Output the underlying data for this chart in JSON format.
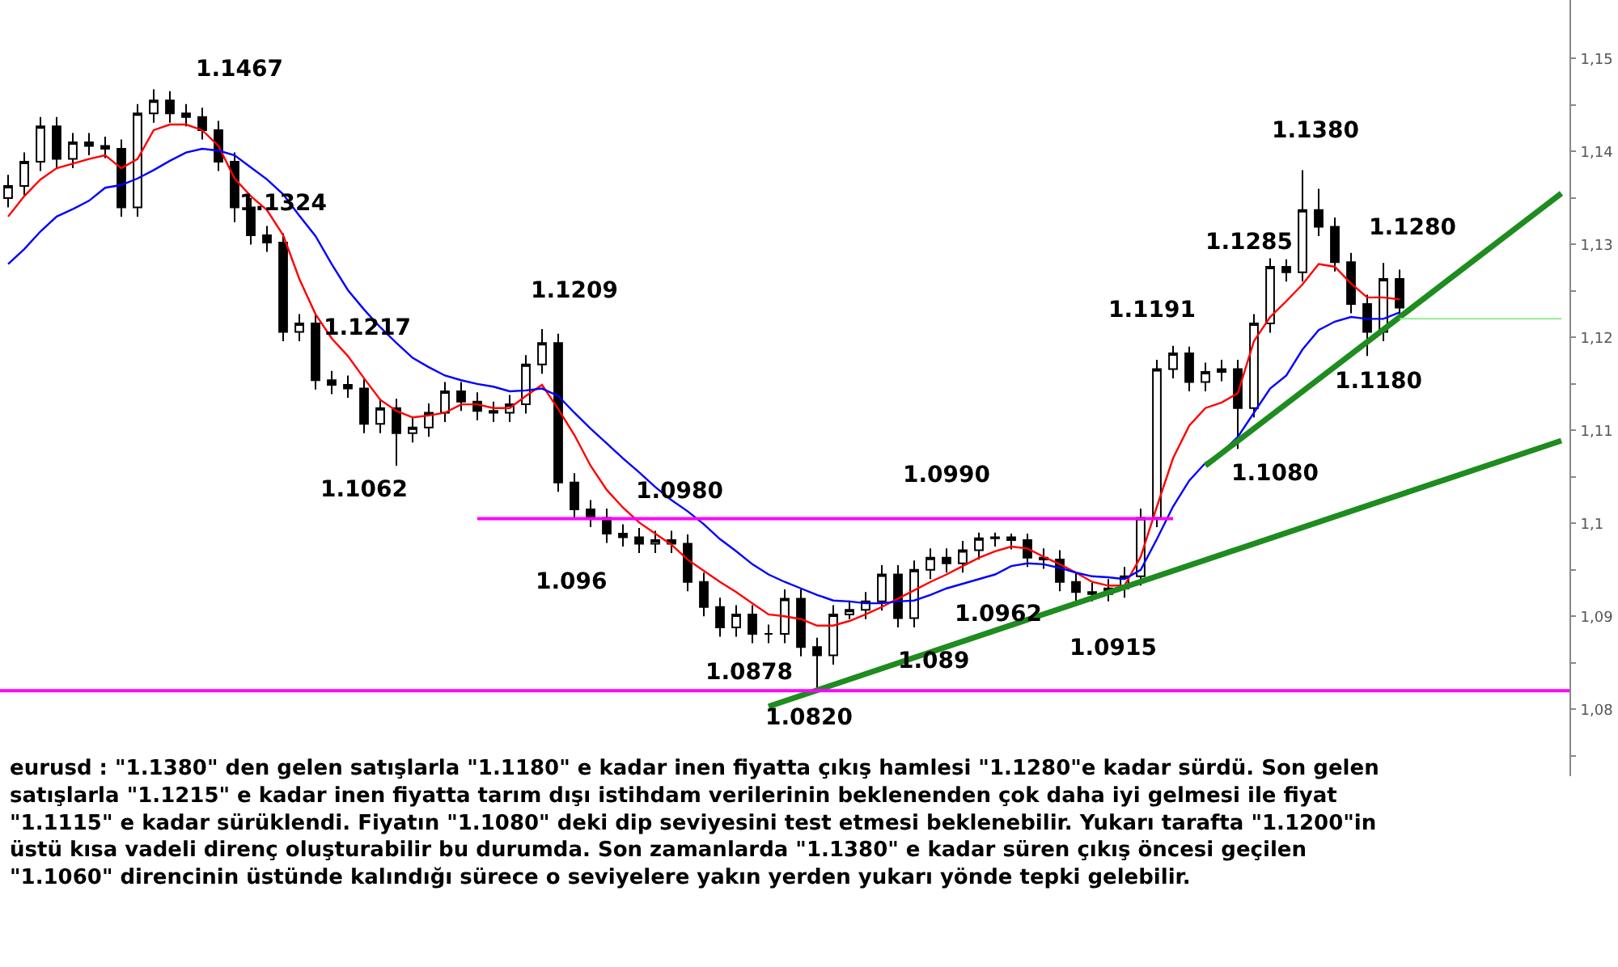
{
  "chart_data": {
    "type": "candlestick",
    "color": "#000000",
    "tick_labels": "y",
    "categories": [
      null,
      null,
      null,
      null,
      null,
      null,
      null,
      null,
      null,
      null,
      null,
      null,
      null,
      null,
      null,
      null,
      null,
      null,
      null,
      null,
      null,
      null,
      null,
      null,
      null,
      null,
      null,
      null,
      null,
      null,
      null,
      null,
      null,
      null,
      null,
      null,
      null,
      null,
      null,
      null,
      null,
      null,
      null,
      null,
      null,
      null,
      null,
      null,
      null,
      null,
      null,
      null,
      null,
      null,
      null,
      null,
      null,
      null,
      null,
      null,
      null,
      null,
      null,
      null,
      null,
      null,
      null,
      null,
      null,
      null,
      null,
      null,
      null,
      null,
      null,
      null,
      null,
      null,
      null,
      null,
      null,
      null,
      null,
      null,
      null,
      null,
      null,
      null,
      null,
      null,
      null,
      null,
      null,
      null,
      null,
      null,
      null
    ],
    "ohlc": [
      [
        1.135,
        1.1375,
        1.134,
        1.1363
      ],
      [
        1.1363,
        1.1399,
        1.1353,
        1.1389
      ],
      [
        1.1389,
        1.1437,
        1.1379,
        1.1427
      ],
      [
        1.1427,
        1.1437,
        1.1382,
        1.1392
      ],
      [
        1.1392,
        1.142,
        1.1382,
        1.141
      ],
      [
        1.141,
        1.142,
        1.1396,
        1.1406
      ],
      [
        1.1406,
        1.1416,
        1.1393,
        1.1403
      ],
      [
        1.1403,
        1.1413,
        1.133,
        1.134
      ],
      [
        1.134,
        1.1451,
        1.133,
        1.1441
      ],
      [
        1.1441,
        1.1467,
        1.1431,
        1.1455
      ],
      [
        1.1455,
        1.1465,
        1.1431,
        1.1441
      ],
      [
        1.1441,
        1.1451,
        1.1427,
        1.1437
      ],
      [
        1.1437,
        1.1447,
        1.1413,
        1.1423
      ],
      [
        1.1423,
        1.1433,
        1.1379,
        1.1389
      ],
      [
        1.1389,
        1.1399,
        1.1324,
        1.134
      ],
      [
        1.134,
        1.135,
        1.13,
        1.131
      ],
      [
        1.131,
        1.132,
        1.1292,
        1.1302
      ],
      [
        1.1302,
        1.1312,
        1.1196,
        1.1206
      ],
      [
        1.1206,
        1.1225,
        1.1196,
        1.1215
      ],
      [
        1.1215,
        1.1225,
        1.1144,
        1.1154
      ],
      [
        1.1154,
        1.1164,
        1.1139,
        1.1149
      ],
      [
        1.1149,
        1.1159,
        1.1135,
        1.1145
      ],
      [
        1.1145,
        1.1155,
        1.1097,
        1.1107
      ],
      [
        1.1107,
        1.1134,
        1.1097,
        1.1124
      ],
      [
        1.1124,
        1.1134,
        1.1062,
        1.1097
      ],
      [
        1.1097,
        1.1113,
        1.1087,
        1.1103
      ],
      [
        1.1103,
        1.1129,
        1.1093,
        1.1119
      ],
      [
        1.1119,
        1.1152,
        1.1109,
        1.1142
      ],
      [
        1.1142,
        1.1152,
        1.1121,
        1.1131
      ],
      [
        1.1131,
        1.1141,
        1.1111,
        1.1121
      ],
      [
        1.1121,
        1.1131,
        1.1109,
        1.1119
      ],
      [
        1.1119,
        1.1138,
        1.1109,
        1.1128
      ],
      [
        1.1128,
        1.1181,
        1.1118,
        1.1171
      ],
      [
        1.1171,
        1.1209,
        1.1161,
        1.1194
      ],
      [
        1.1194,
        1.1204,
        1.1034,
        1.1044
      ],
      [
        1.1044,
        1.1054,
        1.1005,
        1.1015
      ],
      [
        1.1015,
        1.1025,
        1.0996,
        1.1006
      ],
      [
        1.1006,
        1.1016,
        1.0979,
        1.0989
      ],
      [
        1.0989,
        1.0999,
        1.0975,
        1.0985
      ],
      [
        1.0985,
        1.0995,
        1.0968,
        1.0978
      ],
      [
        1.0978,
        1.0992,
        1.0968,
        1.0982
      ],
      [
        1.0982,
        1.0992,
        1.0968,
        1.0978
      ],
      [
        1.0978,
        1.0988,
        1.0927,
        1.0937
      ],
      [
        1.0937,
        1.0947,
        1.09,
        1.091
      ],
      [
        1.091,
        1.092,
        1.0878,
        1.0888
      ],
      [
        1.0888,
        1.0912,
        1.0878,
        1.0902
      ],
      [
        1.0902,
        1.0912,
        1.0871,
        1.0881
      ],
      [
        1.0881,
        1.0891,
        1.0871,
        1.0881
      ],
      [
        1.0881,
        1.0929,
        1.0871,
        1.0919
      ],
      [
        1.0919,
        1.0929,
        1.0857,
        1.0867
      ],
      [
        1.0867,
        1.0877,
        1.082,
        1.0858
      ],
      [
        1.0858,
        1.0912,
        1.0848,
        1.0902
      ],
      [
        1.0902,
        1.0917,
        1.0897,
        1.0907
      ],
      [
        1.0907,
        1.0926,
        1.0897,
        1.0916
      ],
      [
        1.0916,
        1.0955,
        1.0906,
        1.0945
      ],
      [
        1.0945,
        1.0955,
        1.0888,
        1.0898
      ],
      [
        1.0898,
        1.096,
        1.0888,
        1.095
      ],
      [
        1.095,
        1.0973,
        1.094,
        1.0963
      ],
      [
        1.0963,
        1.0973,
        1.0947,
        1.0957
      ],
      [
        1.0957,
        1.0981,
        1.0947,
        1.0971
      ],
      [
        1.0971,
        1.099,
        1.0961,
        1.0984
      ],
      [
        1.0984,
        1.099,
        1.0975,
        1.0985
      ],
      [
        1.0985,
        1.0989,
        1.0972,
        1.0982
      ],
      [
        1.0982,
        1.0989,
        1.0953,
        1.0963
      ],
      [
        1.0963,
        1.0973,
        1.0951,
        1.0961
      ],
      [
        1.0961,
        1.0971,
        1.0927,
        1.0937
      ],
      [
        1.0937,
        1.0947,
        1.0915,
        1.0926
      ],
      [
        1.0926,
        1.0936,
        1.0916,
        1.0924
      ],
      [
        1.0924,
        1.094,
        1.0916,
        1.093
      ],
      [
        1.093,
        1.0953,
        1.092,
        1.0943
      ],
      [
        1.0943,
        1.1016,
        1.0933,
        1.1006
      ],
      [
        1.1006,
        1.1176,
        1.0996,
        1.1166
      ],
      [
        1.1166,
        1.1191,
        1.1156,
        1.1183
      ],
      [
        1.1183,
        1.119,
        1.1142,
        1.1152
      ],
      [
        1.1152,
        1.1173,
        1.1142,
        1.1163
      ],
      [
        1.1163,
        1.1176,
        1.1153,
        1.1166
      ],
      [
        1.1166,
        1.1176,
        1.108,
        1.1124
      ],
      [
        1.1124,
        1.1225,
        1.1114,
        1.1215
      ],
      [
        1.1215,
        1.1285,
        1.1205,
        1.1276
      ],
      [
        1.1276,
        1.1284,
        1.126,
        1.127
      ],
      [
        1.127,
        1.138,
        1.126,
        1.1337
      ],
      [
        1.1337,
        1.136,
        1.1309,
        1.1319
      ],
      [
        1.1319,
        1.1329,
        1.1271,
        1.1281
      ],
      [
        1.1281,
        1.1291,
        1.1226,
        1.1236
      ],
      [
        1.1236,
        1.1246,
        1.118,
        1.1206
      ],
      [
        1.1206,
        1.128,
        1.1196,
        1.1263
      ],
      [
        1.1263,
        1.1273,
        1.1222,
        1.1232
      ],
      null,
      null,
      null,
      null,
      null,
      null,
      null,
      null,
      null,
      null
    ],
    "series": [
      {
        "type": "line",
        "color": "#ff0000",
        "values": [
          1.133,
          1.1352,
          1.137,
          1.1382,
          1.1387,
          1.1392,
          1.1396,
          1.1382,
          1.1392,
          1.1423,
          1.1429,
          1.1429,
          1.1423,
          1.1406,
          1.1371,
          1.1352,
          1.1337,
          1.131,
          1.1263,
          1.1225,
          1.1199,
          1.118,
          1.1156,
          1.1133,
          1.1121,
          1.1114,
          1.1116,
          1.1119,
          1.1128,
          1.1128,
          1.1124,
          1.1124,
          1.1137,
          1.1149,
          1.1123,
          1.1095,
          1.1062,
          1.1036,
          1.1017,
          1.1001,
          1.0989,
          1.0977,
          1.0961,
          1.0949,
          1.0937,
          1.0926,
          1.0914,
          1.0902,
          1.09,
          1.0897,
          1.089,
          1.089,
          1.0895,
          1.0902,
          1.091,
          1.0919,
          1.0928,
          1.0937,
          1.0945,
          1.0954,
          1.0963,
          1.097,
          1.0975,
          1.0973,
          1.0964,
          1.0956,
          1.0947,
          1.0937,
          1.0933,
          1.0933,
          1.0964,
          1.1018,
          1.107,
          1.1105,
          1.1124,
          1.113,
          1.114,
          1.1196,
          1.1222,
          1.1239,
          1.1257,
          1.1279,
          1.1276,
          1.1258,
          1.1243,
          1.1243,
          1.1241,
          null,
          null,
          null,
          null,
          null,
          null,
          null,
          null,
          null,
          null
        ]
      },
      {
        "type": "line",
        "color": "#0000ff",
        "values": [
          1.1279,
          1.1295,
          1.1314,
          1.133,
          1.1338,
          1.1347,
          1.1361,
          1.1364,
          1.1371,
          1.138,
          1.139,
          1.1399,
          1.1403,
          1.1401,
          1.1396,
          1.1383,
          1.137,
          1.1354,
          1.1331,
          1.1309,
          1.1279,
          1.1251,
          1.123,
          1.1211,
          1.1194,
          1.1178,
          1.1168,
          1.1159,
          1.1154,
          1.115,
          1.1147,
          1.1142,
          1.1143,
          1.1145,
          1.1137,
          1.1119,
          1.1102,
          1.1086,
          1.107,
          1.1055,
          1.1039,
          1.1025,
          1.1013,
          1.0999,
          1.0983,
          1.097,
          1.0956,
          1.0945,
          1.0937,
          1.093,
          1.0923,
          1.0917,
          1.0916,
          1.0914,
          1.0914,
          1.0916,
          1.0917,
          1.0923,
          1.093,
          1.0935,
          1.094,
          1.0945,
          1.0954,
          1.0957,
          1.0956,
          1.0952,
          1.0947,
          1.0943,
          1.0942,
          1.094,
          1.095,
          1.0983,
          1.1018,
          1.1046,
          1.1065,
          1.1076,
          1.1093,
          1.1119,
          1.1145,
          1.1159,
          1.1187,
          1.1208,
          1.1217,
          1.1222,
          1.122,
          1.122,
          1.1227,
          null,
          null,
          null,
          null,
          null,
          null,
          null,
          null,
          null,
          null
        ]
      },
      {
        "type": "line",
        "color": "#1e8c1e",
        "values": [
          null,
          null,
          null,
          null,
          null,
          null,
          null,
          null,
          null,
          null,
          null,
          null,
          null,
          null,
          null,
          null,
          null,
          null,
          null,
          null,
          null,
          null,
          null,
          null,
          null,
          null,
          null,
          null,
          null,
          null,
          null,
          null,
          null,
          null,
          null,
          null,
          null,
          null,
          null,
          null,
          null,
          null,
          null,
          null,
          null,
          null,
          null,
          1.0803,
          null,
          null,
          null,
          null,
          null,
          null,
          null,
          null,
          null,
          null,
          null,
          null,
          null,
          null,
          null,
          null,
          null,
          null,
          null,
          null,
          null,
          null,
          null,
          null,
          null,
          null,
          null,
          null,
          null,
          null,
          null,
          null,
          null,
          null,
          null,
          null,
          null,
          null,
          null,
          null,
          null,
          null,
          null,
          null,
          null,
          null,
          null,
          null,
          1.1089
        ]
      },
      {
        "type": "line",
        "color": "#1e8c1e",
        "values": [
          null,
          null,
          null,
          null,
          null,
          null,
          null,
          null,
          null,
          null,
          null,
          null,
          null,
          null,
          null,
          null,
          null,
          null,
          null,
          null,
          null,
          null,
          null,
          null,
          null,
          null,
          null,
          null,
          null,
          null,
          null,
          null,
          null,
          null,
          null,
          null,
          null,
          null,
          null,
          null,
          null,
          null,
          null,
          null,
          null,
          null,
          null,
          null,
          null,
          null,
          null,
          null,
          null,
          null,
          null,
          null,
          null,
          null,
          null,
          null,
          null,
          null,
          null,
          null,
          null,
          null,
          null,
          null,
          null,
          null,
          null,
          null,
          null,
          null,
          1.1062,
          null,
          null,
          null,
          null,
          null,
          null,
          null,
          null,
          null,
          null,
          null,
          null,
          null,
          null,
          null,
          null,
          null,
          null,
          null,
          null,
          null,
          1.1355
        ]
      },
      {
        "type": "line",
        "color": "#ff00ff",
        "values": [
          null,
          null,
          null,
          null,
          null,
          null,
          null,
          null,
          null,
          null,
          null,
          null,
          null,
          null,
          null,
          null,
          null,
          null,
          null,
          null,
          null,
          null,
          null,
          null,
          null,
          null,
          null,
          null,
          null,
          1.1005,
          null,
          null,
          null,
          null,
          null,
          null,
          null,
          null,
          null,
          null,
          null,
          null,
          null,
          null,
          null,
          null,
          null,
          null,
          null,
          null,
          null,
          null,
          null,
          null,
          null,
          null,
          null,
          null,
          null,
          null,
          null,
          null,
          null,
          null,
          null,
          null,
          null,
          null,
          null,
          null,
          null,
          null,
          1.1005,
          null,
          null,
          null,
          null,
          null,
          null,
          null,
          null,
          null,
          null,
          null,
          null,
          null,
          null,
          null,
          null,
          null,
          null,
          null,
          null,
          null,
          null,
          null,
          null
        ]
      },
      {
        "type": "line",
        "color": "#90ee90",
        "values": [
          null,
          null,
          null,
          null,
          null,
          null,
          null,
          null,
          null,
          null,
          null,
          null,
          null,
          null,
          null,
          null,
          null,
          null,
          null,
          null,
          null,
          null,
          null,
          null,
          null,
          null,
          null,
          null,
          null,
          null,
          null,
          null,
          null,
          null,
          null,
          null,
          null,
          null,
          null,
          null,
          null,
          null,
          null,
          null,
          null,
          null,
          null,
          null,
          null,
          null,
          null,
          null,
          null,
          null,
          null,
          null,
          null,
          null,
          null,
          null,
          null,
          null,
          null,
          null,
          null,
          null,
          null,
          null,
          null,
          null,
          null,
          null,
          null,
          null,
          null,
          null,
          null,
          null,
          null,
          null,
          null,
          null,
          null,
          null,
          null,
          null,
          1.122,
          null,
          null,
          null,
          null,
          null,
          null,
          null,
          null,
          null,
          1.122
        ]
      }
    ],
    "ref_lines": [
      {
        "axis": "y",
        "value": 1.082,
        "color": "#ff00ff"
      }
    ],
    "ylim": [
      1.0728,
      1.1563
    ],
    "yticks": [
      {
        "value": 1.075,
        "label": null
      },
      {
        "value": 1.08,
        "label": "1,08"
      },
      {
        "value": 1.085,
        "label": null
      },
      {
        "value": 1.09,
        "label": "1,09"
      },
      {
        "value": 1.095,
        "label": null
      },
      {
        "value": 1.1,
        "label": "1,1"
      },
      {
        "value": 1.105,
        "label": null
      },
      {
        "value": 1.11,
        "label": "1,11"
      },
      {
        "value": 1.115,
        "label": null
      },
      {
        "value": 1.12,
        "label": "1,12"
      },
      {
        "value": 1.125,
        "label": null
      },
      {
        "value": 1.13,
        "label": "1,13"
      },
      {
        "value": 1.135,
        "label": null
      },
      {
        "value": 1.14,
        "label": "1,14"
      },
      {
        "value": 1.145,
        "label": null
      },
      {
        "value": 1.15,
        "label": "1,15"
      }
    ],
    "annotations": [
      "1.1467",
      "1.1324",
      "1.1217",
      "1.1062",
      "1.1209",
      "1.0980",
      "1.096",
      "1.0990",
      "1.0878",
      "1.0820",
      "1.089",
      "1.0962",
      "1.0915",
      "1.1191",
      "1.1285",
      "1.1380",
      "1.1280",
      "1.1080",
      "1.1180",
      "eurusd : \"1.1380\" den gelen satışlarla \"1.1180\" e kadar inen fiyatta çıkış hamlesi \"1.1280\"e kadar sürdü. Son gelen\nsatışlarla \"1.1215\" e kadar inen fiyatta tarım dışı istihdam verilerinin beklenenden çok daha iyi gelmesi ile fiyat\n\"1.1115\" e kadar sürüklendi. Fiyatın \"1.1080\" deki dip seviyesini test etmesi beklenebilir. Yukarı tarafta \"1.1200\"in\nüstü kısa vadeli direnç oluşturabilir bu durumda. Son zamanlarda \"1.1380\" e kadar süren çıkış öncesi geçilen\n\"1.1060\" direncinin üstünde kalındığı sürece o seviyelere yakın yerden yukarı yönde tepki gelebilir."
    ]
  }
}
